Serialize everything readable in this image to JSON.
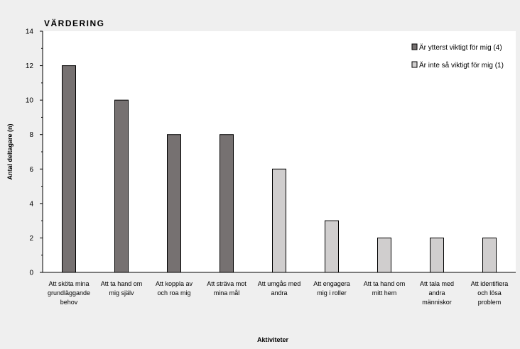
{
  "chart_data": {
    "type": "bar",
    "title": "VÄRDERING",
    "xlabel": "Aktiviteter",
    "ylabel": "Antal deltagare (n)",
    "ylim": [
      0,
      14
    ],
    "yticks": [
      0,
      2,
      4,
      6,
      8,
      10,
      12,
      14
    ],
    "grid": false,
    "legend_position": "top-right",
    "categories": [
      [
        "Att sköta mina",
        "grundläggande",
        "behov"
      ],
      [
        "Att ta hand om",
        "mig själv"
      ],
      [
        "Att koppla av",
        "och roa mig"
      ],
      [
        "Att sträva mot",
        "mina mål"
      ],
      [
        "Att umgås med",
        "andra"
      ],
      [
        "Att engagera",
        "mig i roller"
      ],
      [
        "Att ta hand om",
        "mitt hem"
      ],
      [
        "Att tala med",
        "andra",
        "människor"
      ],
      [
        "Att identifiera",
        "och lösa",
        "problem"
      ]
    ],
    "series": [
      {
        "name": "Är ytterst viktigt för mig (4)",
        "color": "#767171",
        "values": [
          12,
          10,
          8,
          8,
          0,
          0,
          0,
          0,
          0
        ]
      },
      {
        "name": "Är inte så viktigt för mig (1)",
        "color": "#d0cece",
        "values": [
          0,
          0,
          0,
          0,
          6,
          3,
          2,
          2,
          2
        ]
      }
    ]
  }
}
